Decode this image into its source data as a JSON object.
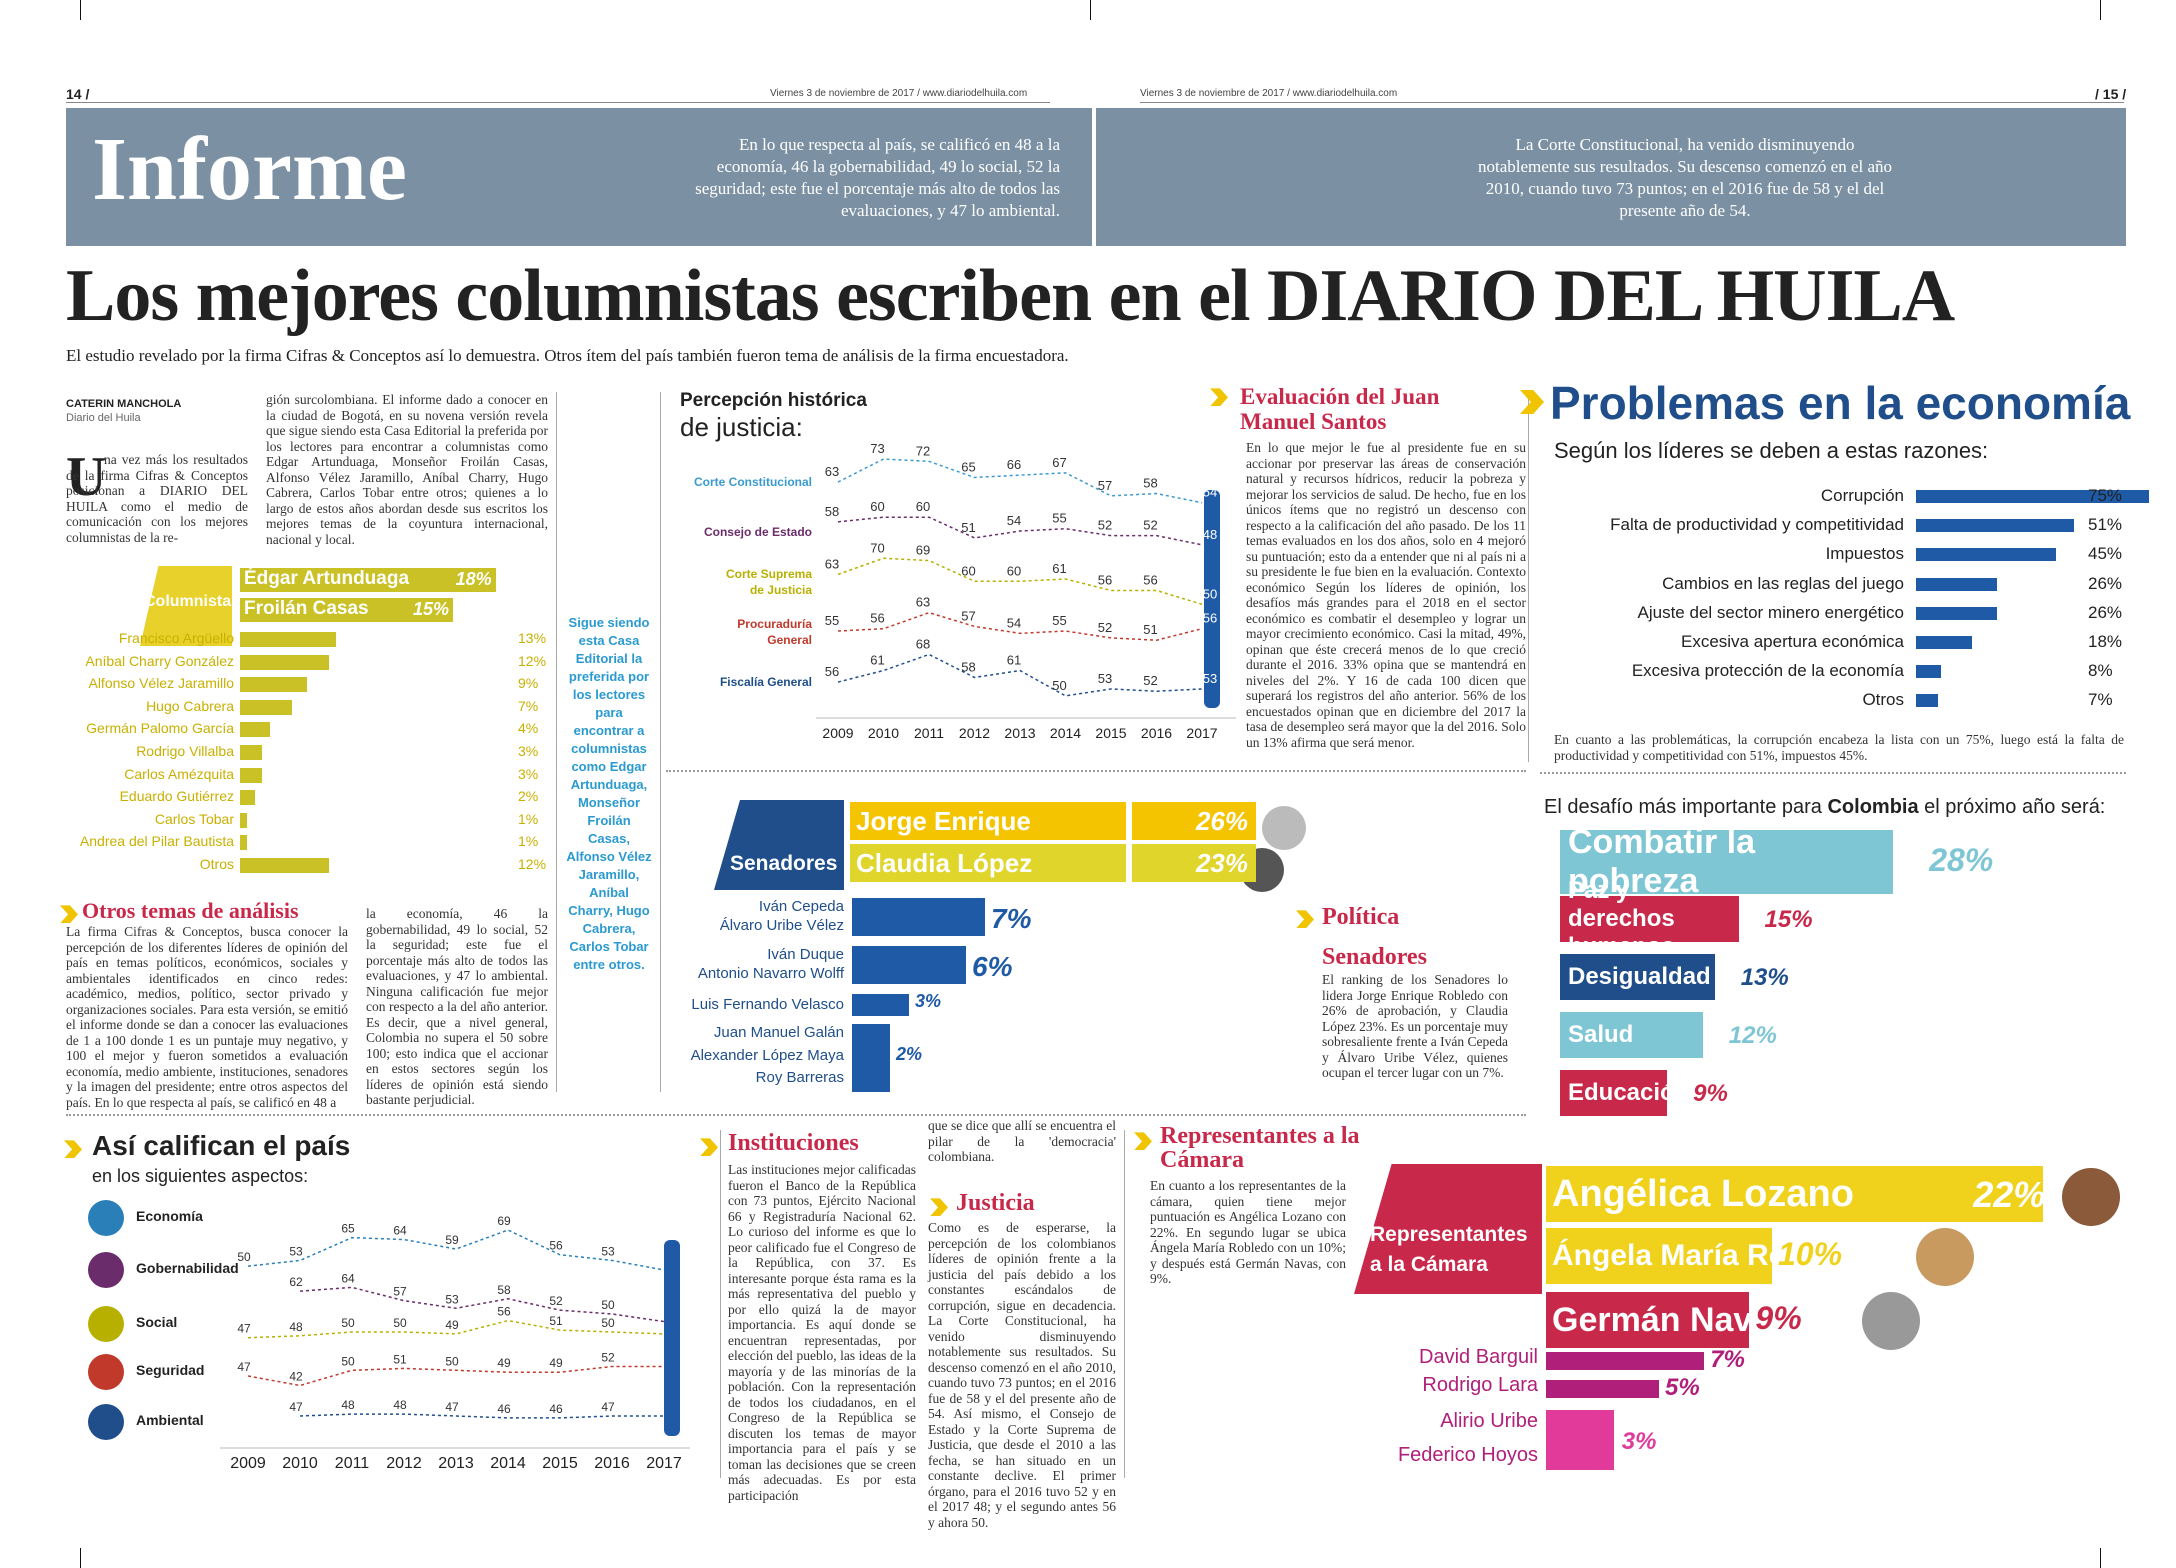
{
  "page_left": {
    "number": "14 /",
    "dateline": "Viernes 3 de noviembre de 2017 / www.diariodelhuila.com"
  },
  "page_right": {
    "number": "/ 15 /",
    "dateline": "Viernes 3 de noviembre de 2017 / www.diariodelhuila.com"
  },
  "section": "Informe",
  "header_quote_left": "En lo que respecta al país, se calificó en 48 a la economía, 46 la gobernabilidad, 49 lo social, 52 la seguridad; este fue el porcentaje más alto de todos las evaluaciones, y 47 lo ambiental.",
  "header_quote_right": "La Corte Constitucional, ha venido disminuyendo notablemente sus resultados. Su descenso comenzó en el año 2010, cuando tuvo 73 puntos; en el 2016 fue de 58 y el del presente año de 54.",
  "headline": "Los mejores columnistas escriben en el DIARIO DEL HUILA",
  "subheadline": "El estudio revelado por la firma Cifras & Conceptos así lo demuestra. Otros ítem del país también fueron tema de análisis de la firma encuestadora.",
  "byline": {
    "author": "CATERIN MANCHOLA",
    "outlet": "Diario del Huila"
  },
  "lead_col1": "na vez más los resultados de la firma Cifras & Conceptos posicionan a DIARIO DEL HUILA como el medio de comunicación con los mejores columnistas de la re-",
  "lead_col2": "gión surcolombiana. El informe dado a conocer en la ciudad de Bogotá, en su novena versión revela que sigue siendo esta Casa Editorial la preferida por los lectores para encontrar a columnistas como Edgar Artunduaga, Monseñor Froilán Casas, Alfonso Vélez Jaramillo, Aníbal Charry, Hugo Cabrera, Carlos Tobar entre otros; quienes a lo largo de estos años abordan desde sus escritos los mejores temas de la coyuntura internacional, nacional y local.",
  "columnistas": {
    "title": "Columnistas",
    "top": [
      {
        "name": "Édgar Artunduaga",
        "pct": "18%",
        "value": 18
      },
      {
        "name": "Froilán Casas",
        "pct": "15%",
        "value": 15
      }
    ],
    "rest": [
      {
        "name": "Francisco Argüello",
        "pct": "13%",
        "value": 13
      },
      {
        "name": "Aníbal Charry González",
        "pct": "12%",
        "value": 12
      },
      {
        "name": "Alfonso Vélez Jaramillo",
        "pct": "9%",
        "value": 9
      },
      {
        "name": "Hugo Cabrera",
        "pct": "7%",
        "value": 7
      },
      {
        "name": "Germán Palomo García",
        "pct": "4%",
        "value": 4
      },
      {
        "name": "Rodrigo Villalba",
        "pct": "3%",
        "value": 3
      },
      {
        "name": "Carlos Amézquita",
        "pct": "3%",
        "value": 3
      },
      {
        "name": "Eduardo Gutiérrez",
        "pct": "2%",
        "value": 2
      },
      {
        "name": "Carlos Tobar",
        "pct": "1%",
        "value": 1
      },
      {
        "name": "Andrea del Pilar Bautista",
        "pct": "1%",
        "value": 1
      },
      {
        "name": "Otros",
        "pct": "12%",
        "value": 12
      }
    ]
  },
  "sidebar_quote": "Sigue siendo esta Casa Editorial la preferida por los lectores para encontrar a columnistas como Edgar Artunduaga, Monseñor Froilán Casas, Alfonso Vélez Jaramillo, Aníbal Charry, Hugo Cabrera, Carlos Tobar entre otros.",
  "otros_temas": {
    "title": "Otros temas de análisis",
    "col1": "La firma Cifras & Conceptos, busca conocer la percepción de los diferentes líderes de opinión del país en temas políticos, económicos, sociales y ambientales identificados en cinco redes: académico, medios, político, sector privado y organizaciones sociales. Para esta versión, se emitió el informe donde se dan a conocer las evaluaciones de 1 a 100 donde 1 es un puntaje muy negativo, y 100 el mejor y fueron sometidos a evaluación economía, medio ambiente, instituciones, senadores y la imagen del presidente; entre otros aspectos del país. En lo que respecta al país, se calificó en 48 a",
    "col2": "la economía, 46 la gobernabilidad, 49 lo social, 52 la seguridad; este fue el porcentaje más alto de todos las evaluaciones, y 47 lo ambiental. Ninguna calificación fue mejor con respecto a la del año anterior. Es decir, que a nivel general, Colombia no supera el 50 sobre 100; esto indica que el accionar en estos sectores según los líderes de opinión está siendo bastante perjudicial."
  },
  "justicia_chart": {
    "title_bold": "Percepción histórica",
    "title_light": "de justicia:",
    "years": [
      "2009",
      "2010",
      "2011",
      "2012",
      "2013",
      "2014",
      "2015",
      "2016",
      "2017"
    ],
    "series": [
      {
        "name": "Corte Constitucional",
        "color": "#3a9ad0",
        "values": [
          63,
          73,
          72,
          65,
          66,
          67,
          57,
          58,
          54
        ]
      },
      {
        "name": "Consejo de Estado",
        "color": "#6a2c6a",
        "values": [
          58,
          60,
          60,
          51,
          54,
          55,
          52,
          52,
          48
        ]
      },
      {
        "name": "Corte Suprema de Justicia",
        "color": "#b8b000",
        "values": [
          63,
          70,
          69,
          60,
          60,
          61,
          56,
          56,
          50
        ]
      },
      {
        "name": "Procuraduría General",
        "color": "#c0392b",
        "values": [
          55,
          56,
          63,
          57,
          54,
          55,
          52,
          51,
          56
        ]
      },
      {
        "name": "Fiscalía General",
        "color": "#1f4e8a",
        "values": [
          56,
          61,
          68,
          58,
          61,
          50,
          53,
          52,
          53
        ]
      }
    ]
  },
  "evaluacion": {
    "title": "Evaluación del Juan Manuel Santos",
    "text": "En lo que mejor le fue al presidente fue en su accionar por preservar las áreas de conservación natural y recursos hídricos, reducir la pobreza y mejorar los servicios de salud. De hecho, fue en los únicos ítems que no registró un descenso con respecto a la calificación del año pasado. De los 11 temas evaluados en los dos años, solo en 4 mejoró su puntuación; esto da a entender que ni al país ni a su presidente le fue bien en la evaluación. Contexto económico Según los líderes de opinión, los desafíos más grandes para el 2018 en el sector económico es combatir el desempleo y lograr un mayor crecimiento económico. Casi la mitad, 49%, opinan que éste crecerá menos de lo que creció durante el 2016. 33% opina que se mantendrá en niveles del 2%. Y 16 de cada 100 dicen que superará los registros del año anterior. 56% de los encuestados opinan que en diciembre del 2017 la tasa de desempleo será mayor que la del 2016. Solo un 13% afirma que será menor."
  },
  "problemas": {
    "title": "Problemas en la economía",
    "subtitle": "Según los líderes se deben a estas razones:",
    "items": [
      {
        "label": "Corrupción",
        "pct": "75%",
        "value": 75
      },
      {
        "label": "Falta de productividad y competitividad",
        "pct": "51%",
        "value": 51
      },
      {
        "label": "Impuestos",
        "pct": "45%",
        "value": 45
      },
      {
        "label": "Cambios en las reglas del juego",
        "pct": "26%",
        "value": 26
      },
      {
        "label": "Ajuste del sector minero energético",
        "pct": "26%",
        "value": 26
      },
      {
        "label": "Excesiva apertura económica",
        "pct": "18%",
        "value": 18
      },
      {
        "label": "Excesiva protección de la economía",
        "pct": "8%",
        "value": 8
      },
      {
        "label": "Otros",
        "pct": "7%",
        "value": 7
      }
    ],
    "note": "En cuanto a las problemáticas, la corrupción encabeza la lista con un 75%, luego está la falta de productividad y competitividad con 51%, impuestos 45%."
  },
  "desafio": {
    "title_start": "El desafío más importante para ",
    "title_bold": "Colombia",
    "title_end": " el próximo año será:",
    "items": [
      {
        "label": "Combatir la pobreza",
        "pct": "28%",
        "value": 28,
        "color": "#7fc6d4"
      },
      {
        "label": "Paz y derechos humanos",
        "pct": "15%",
        "value": 15,
        "color": "#c8284a"
      },
      {
        "label": "Desigualdad",
        "pct": "13%",
        "value": 13,
        "color": "#1f4e8a"
      },
      {
        "label": "Salud",
        "pct": "12%",
        "value": 12,
        "color": "#7fc6d4"
      },
      {
        "label": "Educación",
        "pct": "9%",
        "value": 9,
        "color": "#c8284a"
      }
    ]
  },
  "senadores": {
    "label": "Senadores",
    "top": [
      {
        "name": "Jorge Enrique Robledo",
        "pct": "26%"
      },
      {
        "name": "Claudia López",
        "pct": "23%"
      }
    ],
    "groups": [
      {
        "names": [
          "Iván Cepeda",
          "Álvaro Uribe Vélez"
        ],
        "pct": "7%",
        "value": 7
      },
      {
        "names": [
          "Iván Duque",
          "Antonio Navarro Wolff"
        ],
        "pct": "6%",
        "value": 6
      },
      {
        "names": [
          "Luis Fernando Velasco"
        ],
        "pct": "3%",
        "value": 3
      },
      {
        "names": [
          "Juan Manuel Galán",
          "Alexander López Maya",
          "Roy Barreras"
        ],
        "pct": "2%",
        "value": 2
      }
    ]
  },
  "politica": {
    "title": "Política",
    "subtitle": "Senadores",
    "text": "El ranking de los Senadores lo lidera Jorge Enrique Robledo con 26% de aprobación, y Claudia López 23%. Es un porcentaje muy sobresaliente frente a Iván Cepeda y Álvaro Uribe Vélez, quienes ocupan el tercer lugar con un 7%."
  },
  "pais_chart": {
    "title": "Así califican el país",
    "subtitle": "en los siguientes aspectos:",
    "years": [
      "2009",
      "2010",
      "2011",
      "2012",
      "2013",
      "2014",
      "2015",
      "2016",
      "2017"
    ],
    "series": [
      {
        "name": "Economía",
        "color": "#2a7fb8",
        "values": [
          50,
          53,
          65,
          64,
          59,
          69,
          56,
          53,
          48
        ]
      },
      {
        "name": "Gobernabilidad",
        "color": "#6a2c6a",
        "values": [
          null,
          62,
          64,
          57,
          53,
          58,
          52,
          50,
          46
        ]
      },
      {
        "name": "Social",
        "color": "#b8b000",
        "values": [
          47,
          48,
          50,
          50,
          49,
          56,
          51,
          50,
          49
        ]
      },
      {
        "name": "Seguridad",
        "color": "#c0392b",
        "values": [
          47,
          42,
          50,
          51,
          50,
          49,
          49,
          52,
          52
        ]
      },
      {
        "name": "Ambiental",
        "color": "#1f4e8a",
        "values": [
          null,
          47,
          48,
          48,
          47,
          46,
          46,
          47,
          47
        ]
      }
    ]
  },
  "instituciones": {
    "title": "Instituciones",
    "col1": "Las instituciones mejor calificadas fueron el Banco de la República con 73 puntos, Ejército Nacional 66 y Registraduría Nacional 62. Lo curioso del informe es que lo peor calificado fue el Congreso de la República, con 37. Es interesante porque ésta rama es la más representativa del pueblo y por ello quizá la de mayor importancia. Es aquí donde se encuentran representadas, por elección del pueblo, las ideas de la mayoría y de las minorías de la población. Con la representación de todos los ciudadanos, en el Congreso de la República se discuten los temas de mayor importancia para el país y se toman las decisiones que se creen más adecuadas. Es por esta participación",
    "col2a": "que se dice que allí se encuentra el pilar de la 'democracia' colombiana.",
    "justicia_title": "Justicia",
    "col2b": "Como es de esperarse, la percepción de los colombianos líderes de opinión frente a la justicia del país debido a los constantes escándalos de corrupción, sigue en decadencia. La Corte Constitucional, ha venido disminuyendo notablemente sus resultados. Su descenso comenzó en el año 2010, cuando tuvo 73 puntos; en el 2016 fue de 58 y el del presente año de 54. Así mismo, el Consejo de Estado y la Corte Suprema de Justicia, que desde el 2010 a las fecha, se han situado en un constante declive. El primer órgano, para el 2016 tuvo 52 y en el 2017 48; y el segundo antes 56 y ahora 50."
  },
  "representantes": {
    "title": "Representantes a la Cámara",
    "text": "En cuanto a los representantes de la cámara, quien tiene mejor puntuación es Angélica Lozano con 22%. En segundo lugar se ubica Ángela María Robledo con un 10%; y después está Germán Navas, con 9%.",
    "label": "Representantes a la Cámara",
    "items": [
      {
        "name": "Angélica Lozano",
        "pct": "22%",
        "value": 22,
        "color": "#f0d21c"
      },
      {
        "name": "Ángela María Robledo",
        "pct": "10%",
        "value": 10,
        "color": "#f0d21c"
      },
      {
        "name": "Germán Navas",
        "pct": "9%",
        "value": 9,
        "color": "#c8284a"
      },
      {
        "name": "David Barguil",
        "pct": "7%",
        "value": 7,
        "color": "#b0207a"
      },
      {
        "name": "Rodrigo Lara",
        "pct": "5%",
        "value": 5,
        "color": "#b0207a"
      },
      {
        "name": "Alirio Uribe",
        "pct": "3%",
        "value": 3,
        "color": "#e23a9a"
      },
      {
        "name": "Federico Hoyos",
        "pct": "",
        "value": 3,
        "color": "#e23a9a"
      }
    ]
  }
}
